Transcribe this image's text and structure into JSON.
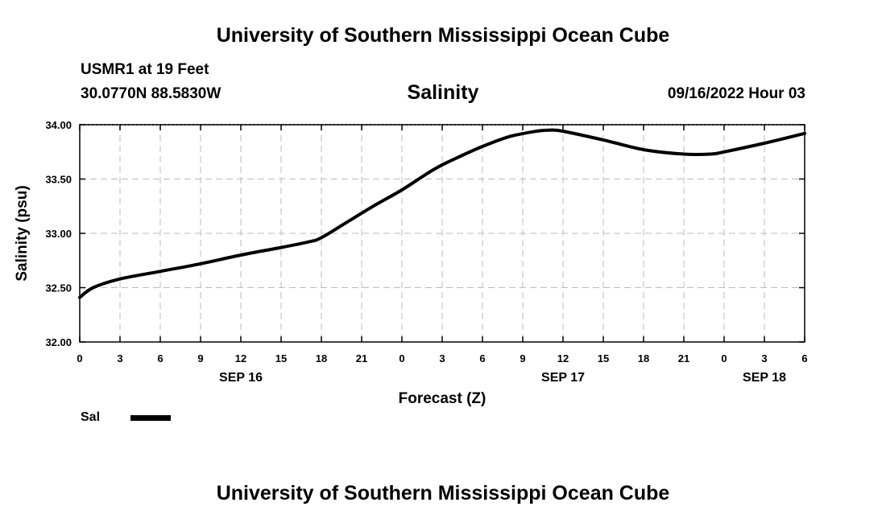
{
  "header": {
    "title": "University of Southern Mississippi Ocean Cube",
    "station": "USMR1 at 19 Feet",
    "coords": "30.0770N  88.5830W",
    "variable": "Salinity",
    "datetime": "09/16/2022 Hour 03"
  },
  "footer": {
    "title": "University of Southern Mississippi Ocean Cube"
  },
  "legend": {
    "label": "Sal"
  },
  "colors": {
    "line": "#000000",
    "grid": "#bbbbbb"
  },
  "chart_data": {
    "type": "line",
    "title": "Salinity",
    "xlabel": "Forecast (Z)",
    "ylabel": "Salinity (psu)",
    "ylim": [
      32.0,
      34.0
    ],
    "xlim": [
      0,
      54
    ],
    "x_unit": "forecast hours from 09/16/2022 00Z",
    "y_ticks": [
      "32.00",
      "32.50",
      "33.00",
      "33.50",
      "34.00"
    ],
    "x_ticks": [
      {
        "x": 0,
        "label": "0"
      },
      {
        "x": 3,
        "label": "3"
      },
      {
        "x": 6,
        "label": "6"
      },
      {
        "x": 9,
        "label": "9"
      },
      {
        "x": 12,
        "label": "12"
      },
      {
        "x": 15,
        "label": "15"
      },
      {
        "x": 18,
        "label": "18"
      },
      {
        "x": 21,
        "label": "21"
      },
      {
        "x": 24,
        "label": "0"
      },
      {
        "x": 27,
        "label": "3"
      },
      {
        "x": 30,
        "label": "6"
      },
      {
        "x": 33,
        "label": "9"
      },
      {
        "x": 36,
        "label": "12"
      },
      {
        "x": 39,
        "label": "15"
      },
      {
        "x": 42,
        "label": "18"
      },
      {
        "x": 45,
        "label": "21"
      },
      {
        "x": 48,
        "label": "0"
      },
      {
        "x": 51,
        "label": "3"
      },
      {
        "x": 54,
        "label": "6"
      }
    ],
    "date_labels": [
      {
        "x": 12,
        "label": "SEP 16"
      },
      {
        "x": 36,
        "label": "SEP 17"
      },
      {
        "x": 51,
        "label": "SEP 18"
      }
    ],
    "grid": true,
    "series": [
      {
        "name": "Sal",
        "x": [
          0,
          1,
          3,
          6,
          9,
          12,
          15,
          17,
          18,
          20,
          22,
          24,
          26,
          27,
          28,
          30,
          32,
          34,
          35,
          36,
          39,
          42,
          45,
          47,
          48,
          51,
          54
        ],
        "values": [
          32.41,
          32.5,
          32.58,
          32.65,
          32.72,
          32.8,
          32.87,
          32.92,
          32.96,
          33.11,
          33.26,
          33.4,
          33.56,
          33.63,
          33.69,
          33.8,
          33.89,
          33.94,
          33.95,
          33.94,
          33.86,
          33.77,
          33.73,
          33.73,
          33.75,
          33.83,
          33.92
        ]
      }
    ]
  }
}
